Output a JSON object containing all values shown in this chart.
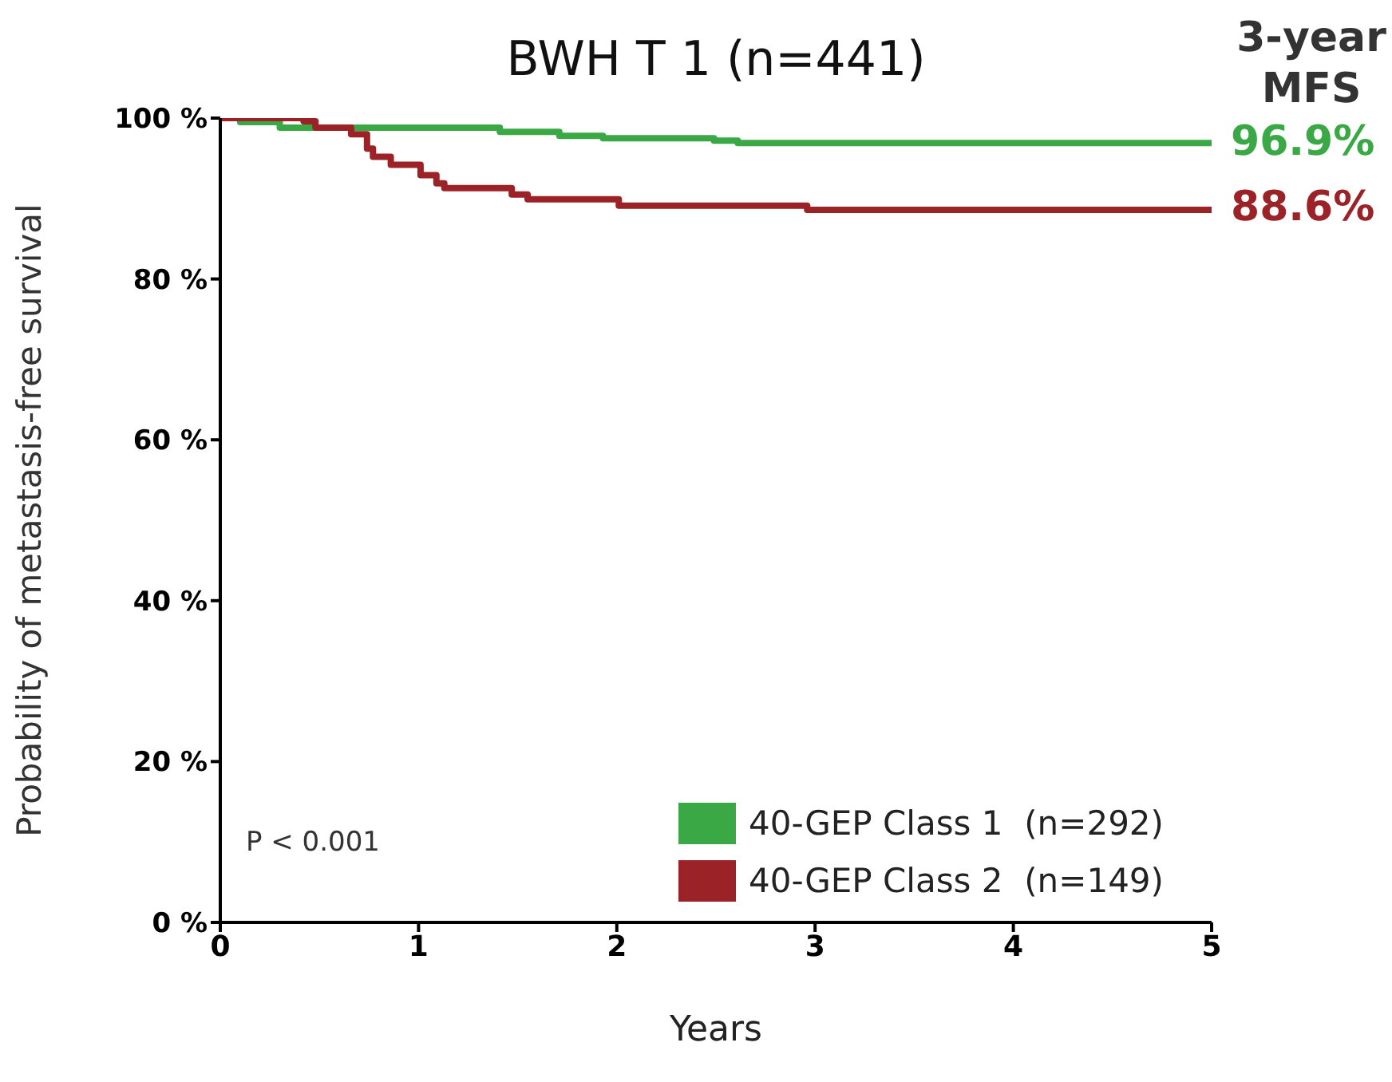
{
  "chart_data": {
    "type": "step",
    "title": "BWH T 1 (n=441)",
    "xlabel": "Years",
    "ylabel": "Probability of metastasis-free survival",
    "xlim": [
      0,
      5
    ],
    "xticks": [
      0,
      1,
      2,
      3,
      4,
      5
    ],
    "ylim": [
      0,
      100
    ],
    "yticks": [
      {
        "value": 0,
        "label": "0 %"
      },
      {
        "value": 20,
        "label": "20 %"
      },
      {
        "value": 40,
        "label": "40 %"
      },
      {
        "value": 60,
        "label": "60 %"
      },
      {
        "value": 80,
        "label": "80 %"
      },
      {
        "value": 100,
        "label": "100 %"
      }
    ],
    "legend": "bottom right",
    "marker": "none",
    "line_style": "solid",
    "series": [
      {
        "name": "40-GEP Class 1  (n=292)",
        "color": "#3aa845",
        "x": [
          0,
          0.1,
          0.3,
          1.41,
          1.71,
          1.93,
          2.49,
          2.61,
          5
        ],
        "values": [
          100,
          99.5,
          98.8,
          98.3,
          97.8,
          97.5,
          97.2,
          96.9,
          96.9
        ]
      },
      {
        "name": "40-GEP Class 2  (n=149)",
        "color": "#9b2226",
        "x": [
          0,
          0.42,
          0.48,
          0.66,
          0.74,
          0.77,
          0.86,
          1.01,
          1.09,
          1.13,
          1.47,
          1.55,
          2.01,
          2.96,
          5
        ],
        "values": [
          100,
          99.6,
          98.8,
          98,
          96.2,
          95.2,
          94.2,
          92.9,
          91.9,
          91.3,
          90.5,
          89.9,
          89.1,
          88.6,
          88.6
        ]
      }
    ],
    "annotations": [
      "3-year MFS",
      "96.9%",
      "88.6%",
      "P < 0.001"
    ]
  }
}
